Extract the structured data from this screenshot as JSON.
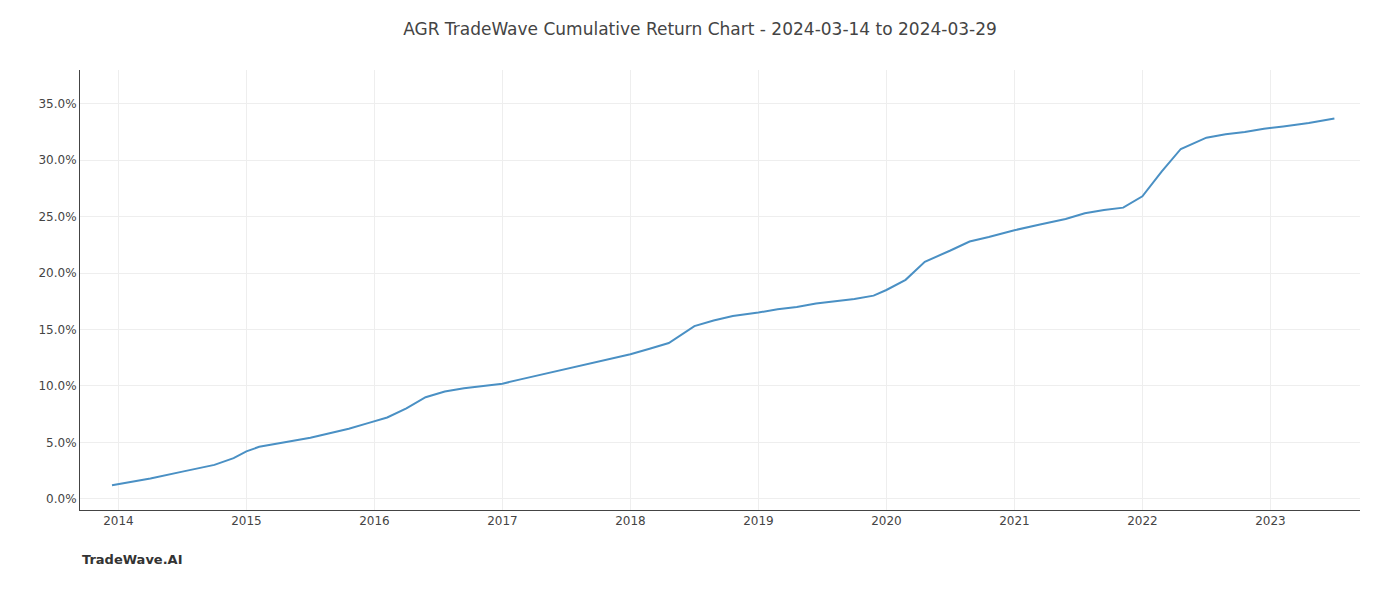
{
  "chart_data": {
    "type": "line",
    "title": "AGR TradeWave Cumulative Return Chart - 2024-03-14 to 2024-03-29",
    "annotations": [
      "TradeWave.AI"
    ],
    "x": [
      2013.95,
      2014.1,
      2014.25,
      2014.5,
      2014.75,
      2014.9,
      2015.0,
      2015.1,
      2015.2,
      2015.35,
      2015.5,
      2015.65,
      2015.8,
      2015.95,
      2016.1,
      2016.25,
      2016.4,
      2016.55,
      2016.7,
      2016.85,
      2017.0,
      2017.15,
      2017.3,
      2017.5,
      2017.7,
      2017.85,
      2018.0,
      2018.15,
      2018.3,
      2018.5,
      2018.65,
      2018.8,
      2019.0,
      2019.15,
      2019.3,
      2019.45,
      2019.6,
      2019.75,
      2019.9,
      2020.0,
      2020.15,
      2020.3,
      2020.5,
      2020.65,
      2020.8,
      2021.0,
      2021.2,
      2021.4,
      2021.55,
      2021.7,
      2021.85,
      2022.0,
      2022.15,
      2022.3,
      2022.5,
      2022.65,
      2022.8,
      2022.95,
      2023.1,
      2023.3,
      2023.5
    ],
    "values": [
      0.012,
      0.015,
      0.018,
      0.024,
      0.03,
      0.036,
      0.042,
      0.046,
      0.048,
      0.051,
      0.054,
      0.058,
      0.062,
      0.067,
      0.072,
      0.08,
      0.09,
      0.095,
      0.098,
      0.1,
      0.102,
      0.106,
      0.11,
      0.115,
      0.12,
      0.124,
      0.128,
      0.133,
      0.138,
      0.153,
      0.158,
      0.162,
      0.165,
      0.168,
      0.17,
      0.173,
      0.175,
      0.177,
      0.18,
      0.185,
      0.194,
      0.21,
      0.22,
      0.228,
      0.232,
      0.238,
      0.243,
      0.248,
      0.253,
      0.256,
      0.258,
      0.268,
      0.29,
      0.31,
      0.32,
      0.323,
      0.325,
      0.328,
      0.33,
      0.333,
      0.337
    ],
    "color": "#4a90c4",
    "xlim": [
      2013.7,
      2023.7
    ],
    "xticks": [
      2014,
      2015,
      2016,
      2017,
      2018,
      2019,
      2020,
      2021,
      2022,
      2023
    ],
    "ylim": [
      -0.01,
      0.38
    ],
    "yticks": [
      {
        "value": 0.0,
        "label": "0.0%"
      },
      {
        "value": 0.05,
        "label": "5.0%"
      },
      {
        "value": 0.1,
        "label": "10.0%"
      },
      {
        "value": 0.15,
        "label": "15.0%"
      },
      {
        "value": 0.2,
        "label": "20.0%"
      },
      {
        "value": 0.25,
        "label": "25.0%"
      },
      {
        "value": 0.3,
        "label": "30.0%"
      },
      {
        "value": 0.35,
        "label": "35.0%"
      }
    ],
    "grid": true
  }
}
